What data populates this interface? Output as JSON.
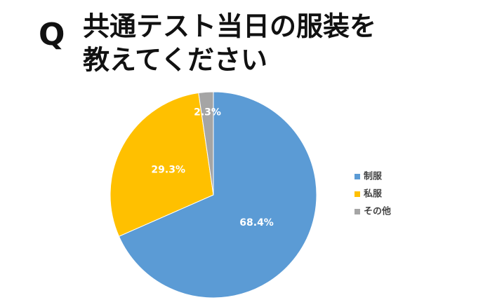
{
  "chart_data": {
    "type": "pie",
    "title_marker": "Q",
    "title": [
      "共通テスト当日の服装を",
      "教えてください"
    ],
    "categories": [
      "制服",
      "私服",
      "その他"
    ],
    "values": [
      68.4,
      29.3,
      2.3
    ],
    "value_labels": [
      "68.4%",
      "29.3%",
      "2.3%"
    ],
    "colors": [
      "#5b9bd5",
      "#ffc000",
      "#a5a5a5"
    ],
    "legend": "right"
  }
}
